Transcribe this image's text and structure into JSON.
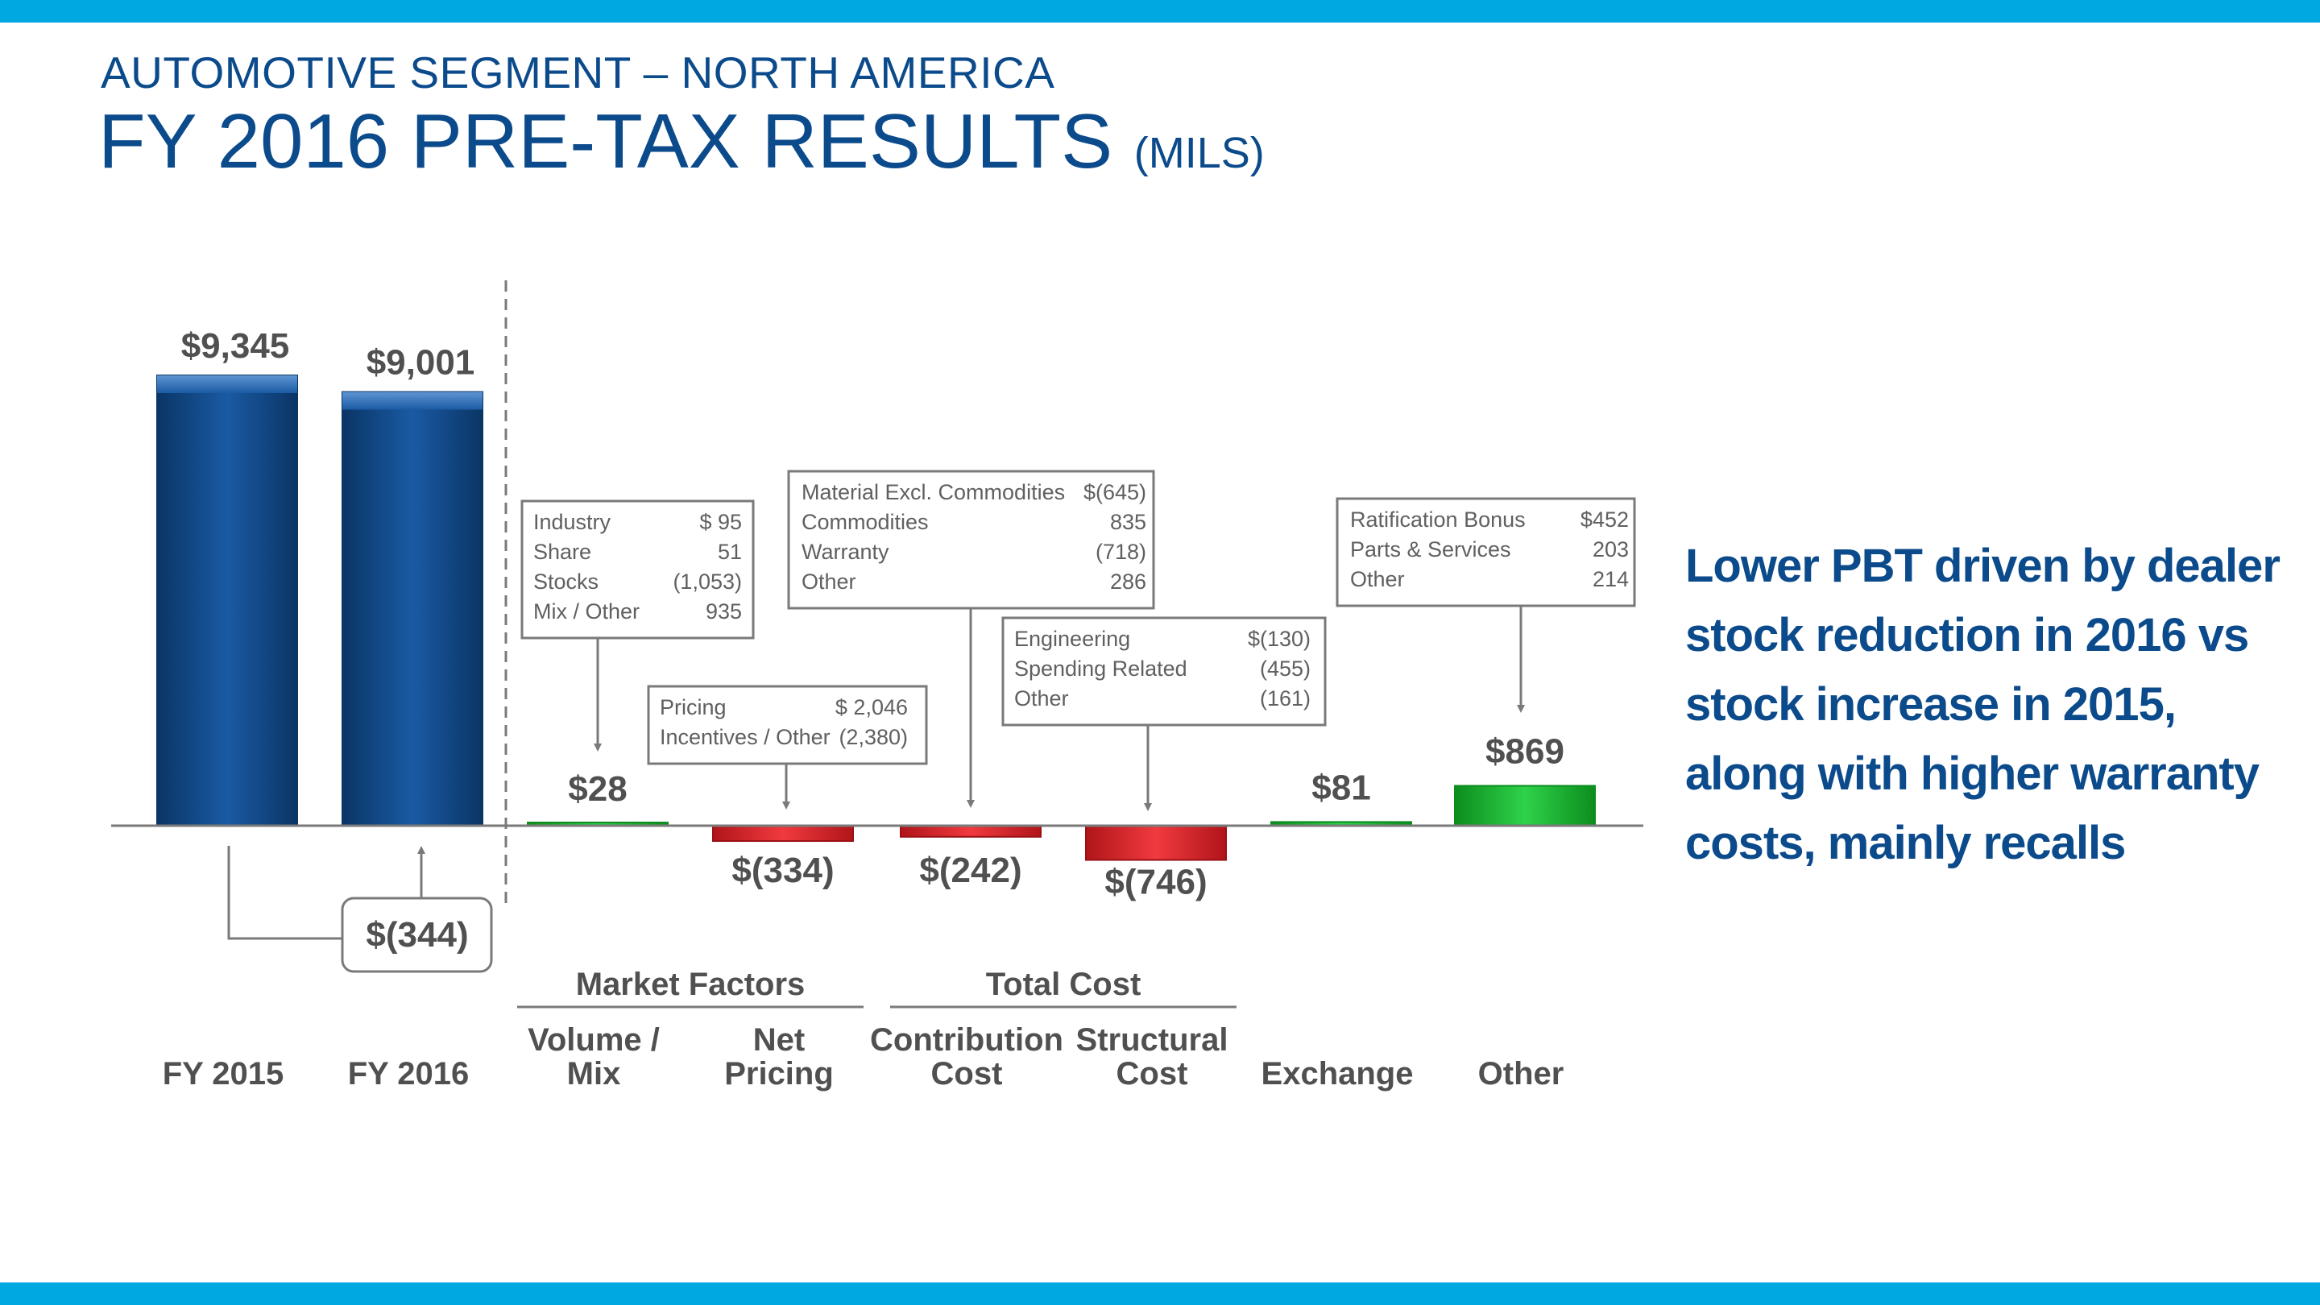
{
  "header": {
    "subtitle": "AUTOMOTIVE SEGMENT – NORTH AMERICA",
    "title": "FY 2016 PRE-TAX RESULTS",
    "unit": "(MILS)"
  },
  "commentary": "Lower PBT driven by dealer stock reduction in 2016 vs stock increase in 2015, along with higher warranty costs, mainly recalls",
  "colors": {
    "total": "#0f4a8a",
    "negative": "#d8262b",
    "positive": "#17b02a",
    "text": "#505050",
    "band": "#00a8e1"
  },
  "chart_data": {
    "type": "bar",
    "subtype": "waterfall",
    "categories": [
      "FY 2015",
      "FY 2016",
      "Volume / Mix",
      "Net Pricing",
      "Contribution Cost",
      "Structural Cost",
      "Exchange",
      "Other"
    ],
    "values": [
      9345,
      9001,
      28,
      -334,
      -242,
      -746,
      81,
      869
    ],
    "value_labels": [
      "$9,345",
      "$9,001",
      "$28",
      "$(334)",
      "$(242)",
      "$(746)",
      "$81",
      "$869"
    ],
    "kinds": [
      "total",
      "total",
      "change",
      "change",
      "change",
      "change",
      "change",
      "change"
    ],
    "year_change": {
      "from": "FY 2015",
      "to": "FY 2016",
      "value": -344,
      "label": "$(344)"
    },
    "groups": [
      {
        "label": "Market Factors",
        "categories": [
          "Volume / Mix",
          "Net Pricing"
        ]
      },
      {
        "label": "Total Cost",
        "categories": [
          "Contribution Cost",
          "Structural Cost"
        ]
      }
    ],
    "breakdowns": [
      {
        "category": "Volume / Mix",
        "rows": [
          {
            "label": "Industry",
            "value": "$      95"
          },
          {
            "label": "Share",
            "value": "51"
          },
          {
            "label": "Stocks",
            "value": "(1,053)"
          },
          {
            "label": "Mix / Other",
            "value": "935"
          }
        ]
      },
      {
        "category": "Net Pricing",
        "rows": [
          {
            "label": "Pricing",
            "value": "$ 2,046"
          },
          {
            "label": "Incentives / Other",
            "value": "(2,380)"
          }
        ]
      },
      {
        "category": "Contribution Cost",
        "rows": [
          {
            "label": "Material Excl. Commodities",
            "value": "$(645)"
          },
          {
            "label": "Commodities",
            "value": "835"
          },
          {
            "label": "Warranty",
            "value": "(718)"
          },
          {
            "label": "Other",
            "value": "286"
          }
        ]
      },
      {
        "category": "Structural Cost",
        "rows": [
          {
            "label": "Engineering",
            "value": "$(130)"
          },
          {
            "label": "Spending Related",
            "value": "(455)"
          },
          {
            "label": "Other",
            "value": "(161)"
          }
        ]
      },
      {
        "category": "Other",
        "rows": [
          {
            "label": "Ratification Bonus",
            "value": "$452"
          },
          {
            "label": "Parts & Services",
            "value": "203"
          },
          {
            "label": "Other",
            "value": "214"
          }
        ]
      }
    ]
  }
}
